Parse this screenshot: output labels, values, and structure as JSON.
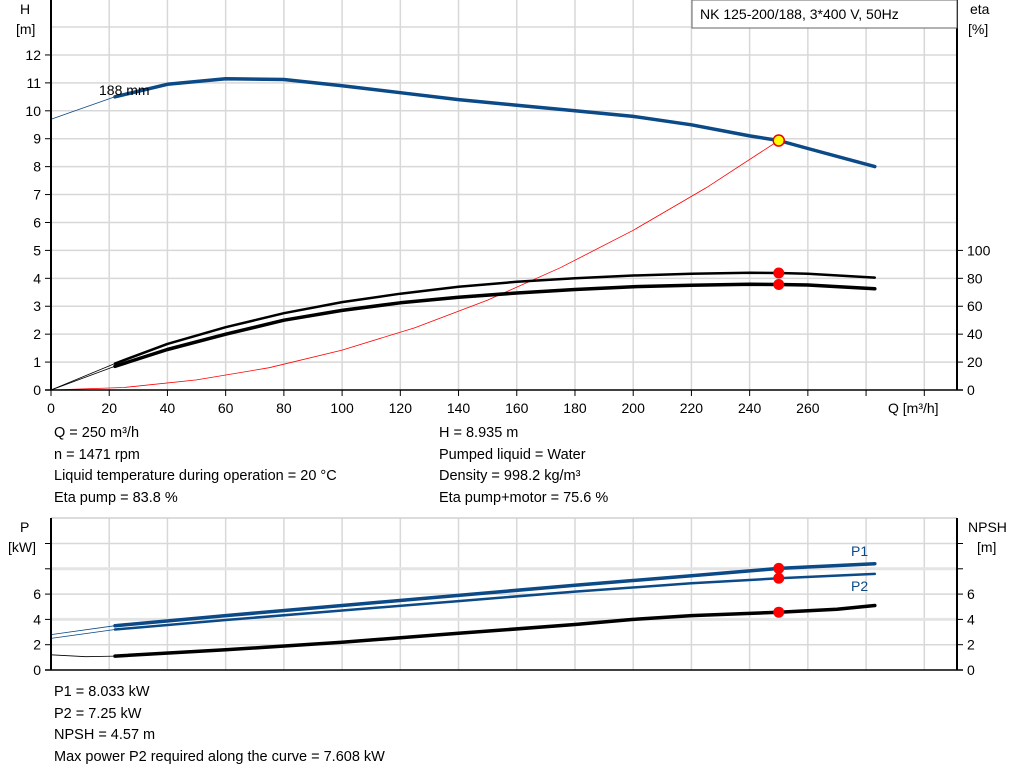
{
  "chart_data": [
    {
      "type": "line",
      "title": "NK 125-200/188, 3*400 V, 50Hz",
      "xlabel": "Q [m³/h]",
      "ylabel_left": [
        "H",
        "[m]"
      ],
      "ylabel_right": [
        "eta",
        "[%]"
      ],
      "xlim": [
        0,
        310
      ],
      "ylim_left": [
        0,
        14
      ],
      "ylim_right": [
        0,
        100
      ],
      "x_ticks": [
        0,
        20,
        40,
        60,
        80,
        100,
        120,
        140,
        160,
        180,
        200,
        220,
        240,
        260
      ],
      "y_ticks_left": [
        0,
        1,
        2,
        3,
        4,
        5,
        6,
        7,
        8,
        9,
        10,
        11,
        12
      ],
      "y_ticks_right": [
        0,
        20,
        40,
        60,
        80,
        100
      ],
      "grid": true,
      "curve_label": "188 mm",
      "series": [
        {
          "name": "H",
          "axis": "left",
          "color": "#0b4a87",
          "x": [
            0,
            22,
            40,
            60,
            80,
            100,
            120,
            140,
            160,
            180,
            200,
            220,
            240,
            250,
            260,
            283
          ],
          "y": [
            9.7,
            10.5,
            10.95,
            11.15,
            11.12,
            10.9,
            10.65,
            10.4,
            10.2,
            10.0,
            9.8,
            9.5,
            9.1,
            8.935,
            8.65,
            8.0
          ]
        },
        {
          "name": "System",
          "axis": "left",
          "color": "#ff0000",
          "x": [
            0,
            25,
            50,
            75,
            100,
            125,
            150,
            175,
            200,
            225,
            250
          ],
          "y": [
            0,
            0.09,
            0.36,
            0.8,
            1.43,
            2.23,
            3.22,
            4.38,
            5.72,
            7.24,
            8.935
          ]
        },
        {
          "name": "Eta pump",
          "axis": "right",
          "color": "#000000",
          "x": [
            0,
            22,
            40,
            60,
            80,
            100,
            120,
            140,
            160,
            180,
            200,
            220,
            240,
            250,
            260,
            283
          ],
          "y": [
            0,
            19,
            33,
            45,
            55,
            63,
            69,
            74,
            77.5,
            80,
            82,
            83.3,
            84,
            83.8,
            83.3,
            80.5
          ]
        },
        {
          "name": "Eta pump+motor",
          "axis": "right",
          "color": "#000000",
          "x": [
            0,
            22,
            40,
            60,
            80,
            100,
            120,
            140,
            160,
            180,
            200,
            220,
            240,
            250,
            260,
            283
          ],
          "y": [
            0,
            17,
            29,
            40,
            50,
            57,
            62.5,
            66.5,
            69.5,
            72,
            74,
            75,
            75.7,
            75.6,
            75.2,
            72.5
          ]
        }
      ],
      "operating_points": [
        {
          "x": 250,
          "y": 8.935,
          "axis": "left",
          "color": "#ffff00"
        },
        {
          "x": 250,
          "y": 83.8,
          "axis": "right",
          "color": "#ff0000"
        },
        {
          "x": 250,
          "y": 75.6,
          "axis": "right",
          "color": "#ff0000"
        }
      ]
    },
    {
      "type": "line",
      "ylabel_left": [
        "P",
        "[kW]"
      ],
      "ylabel_right": [
        "NPSH",
        "[m]"
      ],
      "xlim": [
        0,
        310
      ],
      "ylim": [
        0,
        12
      ],
      "y_ticks_labeled": [
        0,
        2,
        4,
        6
      ],
      "grid": true,
      "series": [
        {
          "name": "P1",
          "color": "#0b4a87",
          "x": [
            0,
            22,
            60,
            100,
            140,
            180,
            220,
            250,
            283
          ],
          "y": [
            2.8,
            3.5,
            4.3,
            5.1,
            5.9,
            6.7,
            7.45,
            8.033,
            8.4
          ]
        },
        {
          "name": "P2",
          "color": "#0b4a87",
          "x": [
            0,
            22,
            60,
            100,
            140,
            180,
            220,
            250,
            283
          ],
          "y": [
            2.5,
            3.2,
            3.95,
            4.7,
            5.45,
            6.2,
            6.85,
            7.25,
            7.6
          ]
        },
        {
          "name": "NPSH",
          "color": "#000000",
          "x": [
            0,
            12,
            22,
            60,
            100,
            140,
            180,
            200,
            220,
            250,
            270,
            283
          ],
          "y": [
            1.2,
            1.05,
            1.1,
            1.6,
            2.2,
            2.9,
            3.6,
            4.0,
            4.3,
            4.57,
            4.8,
            5.1
          ]
        }
      ],
      "operating_points": [
        {
          "x": 250,
          "y": 8.033,
          "color": "#ff0000"
        },
        {
          "x": 250,
          "y": 7.25,
          "color": "#ff0000"
        },
        {
          "x": 250,
          "y": 4.57,
          "color": "#ff0000"
        }
      ]
    }
  ],
  "info_top": {
    "left": [
      "Q = 250 m³/h",
      "n = 1471 rpm",
      "Liquid temperature during operation = 20 °C",
      "Eta pump = 83.8 %"
    ],
    "right": [
      "H = 8.935 m",
      "Pumped liquid = Water",
      "Density = 998.2 kg/m³",
      "Eta pump+motor = 75.6 %"
    ]
  },
  "info_bottom": [
    "P1 = 8.033 kW",
    "P2 = 7.25 kW",
    "NPSH = 4.57 m",
    "Max power P2 required along the curve = 7.608 kW"
  ]
}
